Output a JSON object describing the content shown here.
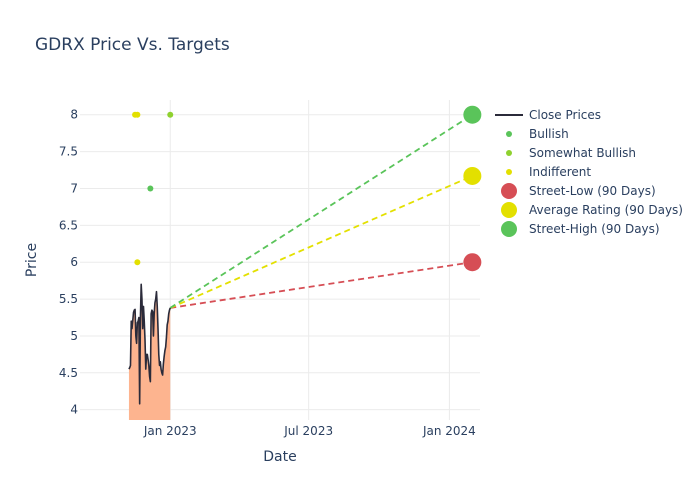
{
  "chart_data": {
    "type": "line",
    "title": "GDRX Price Vs. Targets",
    "xlabel": "Date",
    "ylabel": "Price",
    "xlim": [
      "2022-09-05",
      "2024-02-10"
    ],
    "ylim": [
      3.86,
      8.2
    ],
    "x_ticks": [
      {
        "date": "2023-01-01",
        "label": "Jan 2023"
      },
      {
        "date": "2023-07-01",
        "label": "Jul 2023"
      },
      {
        "date": "2024-01-01",
        "label": "Jan 2024"
      }
    ],
    "y_ticks": [
      4,
      4.5,
      5,
      5.5,
      6,
      6.5,
      7,
      7.5,
      8
    ],
    "grid": true,
    "legend_position": "right",
    "colors": {
      "close": "#2b2b3a",
      "area_fill": "#fdb48f",
      "bullish": "#5ac45a",
      "somewhat_bullish": "#8fd12f",
      "indifferent": "#e3e000",
      "street_low": "#d64e55",
      "average": "#e3e000",
      "street_high": "#5ac45a"
    },
    "legend": [
      {
        "label": "Close Prices",
        "kind": "line",
        "color": "#2b2b3a"
      },
      {
        "label": "Bullish",
        "kind": "dot",
        "color": "#5ac45a"
      },
      {
        "label": "Somewhat Bullish",
        "kind": "dot",
        "color": "#8fd12f"
      },
      {
        "label": "Indifferent",
        "kind": "dot",
        "color": "#e3e000"
      },
      {
        "label": "Street-Low (90 Days)",
        "kind": "big",
        "color": "#d64e55"
      },
      {
        "label": "Average Rating (90 Days)",
        "kind": "big",
        "color": "#e3e000"
      },
      {
        "label": "Street-High (90 Days)",
        "kind": "big",
        "color": "#5ac45a"
      }
    ],
    "close_prices": [
      [
        "2022-11-08",
        4.55
      ],
      [
        "2022-11-09",
        4.57
      ],
      [
        "2022-11-10",
        4.6
      ],
      [
        "2022-11-11",
        5.2
      ],
      [
        "2022-11-12",
        5.1
      ],
      [
        "2022-11-14",
        5.32
      ],
      [
        "2022-11-15",
        5.35
      ],
      [
        "2022-11-16",
        5.36
      ],
      [
        "2022-11-17",
        5.0
      ],
      [
        "2022-11-18",
        4.9
      ],
      [
        "2022-11-19",
        5.18
      ],
      [
        "2022-11-20",
        5.2
      ],
      [
        "2022-11-21",
        5.25
      ],
      [
        "2022-11-22",
        4.08
      ],
      [
        "2022-11-23",
        5.25
      ],
      [
        "2022-11-24",
        5.7
      ],
      [
        "2022-11-25",
        5.5
      ],
      [
        "2022-11-26",
        5.1
      ],
      [
        "2022-11-27",
        5.4
      ],
      [
        "2022-11-28",
        5.2
      ],
      [
        "2022-11-29",
        4.95
      ],
      [
        "2022-11-30",
        4.55
      ],
      [
        "2022-12-01",
        4.75
      ],
      [
        "2022-12-02",
        4.75
      ],
      [
        "2022-12-03",
        4.68
      ],
      [
        "2022-12-04",
        4.6
      ],
      [
        "2022-12-05",
        4.45
      ],
      [
        "2022-12-06",
        4.38
      ],
      [
        "2022-12-07",
        5.3
      ],
      [
        "2022-12-08",
        5.35
      ],
      [
        "2022-12-09",
        5.33
      ],
      [
        "2022-12-10",
        5.0
      ],
      [
        "2022-12-11",
        5.3
      ],
      [
        "2022-12-12",
        5.45
      ],
      [
        "2022-12-13",
        5.5
      ],
      [
        "2022-12-14",
        5.6
      ],
      [
        "2022-12-15",
        5.4
      ],
      [
        "2022-12-16",
        5.1
      ],
      [
        "2022-12-17",
        4.75
      ],
      [
        "2022-12-18",
        4.6
      ],
      [
        "2022-12-19",
        4.65
      ],
      [
        "2022-12-20",
        4.55
      ],
      [
        "2022-12-21",
        4.5
      ],
      [
        "2022-12-22",
        4.47
      ],
      [
        "2022-12-23",
        4.62
      ],
      [
        "2022-12-24",
        4.72
      ],
      [
        "2022-12-25",
        4.8
      ],
      [
        "2022-12-26",
        4.85
      ],
      [
        "2022-12-27",
        4.98
      ],
      [
        "2022-12-28",
        5.15
      ],
      [
        "2022-12-29",
        5.2
      ],
      [
        "2022-12-30",
        5.3
      ],
      [
        "2022-12-31",
        5.35
      ],
      [
        "2023-01-01",
        5.38
      ]
    ],
    "analyst_ratings": [
      {
        "date": "2022-11-16",
        "price": 8.0,
        "rating": "Indifferent"
      },
      {
        "date": "2022-11-19",
        "price": 8.0,
        "rating": "Indifferent"
      },
      {
        "date": "2022-11-19",
        "price": 6.0,
        "rating": "Indifferent"
      },
      {
        "date": "2022-12-06",
        "price": 7.0,
        "rating": "Bullish"
      },
      {
        "date": "2023-01-01",
        "price": 8.0,
        "rating": "Somewhat Bullish"
      }
    ],
    "targets": {
      "start": {
        "date": "2023-01-01",
        "price": 5.38
      },
      "end_date": "2024-01-31",
      "street_low": 6.0,
      "average": 7.17,
      "street_high": 8.0
    }
  }
}
